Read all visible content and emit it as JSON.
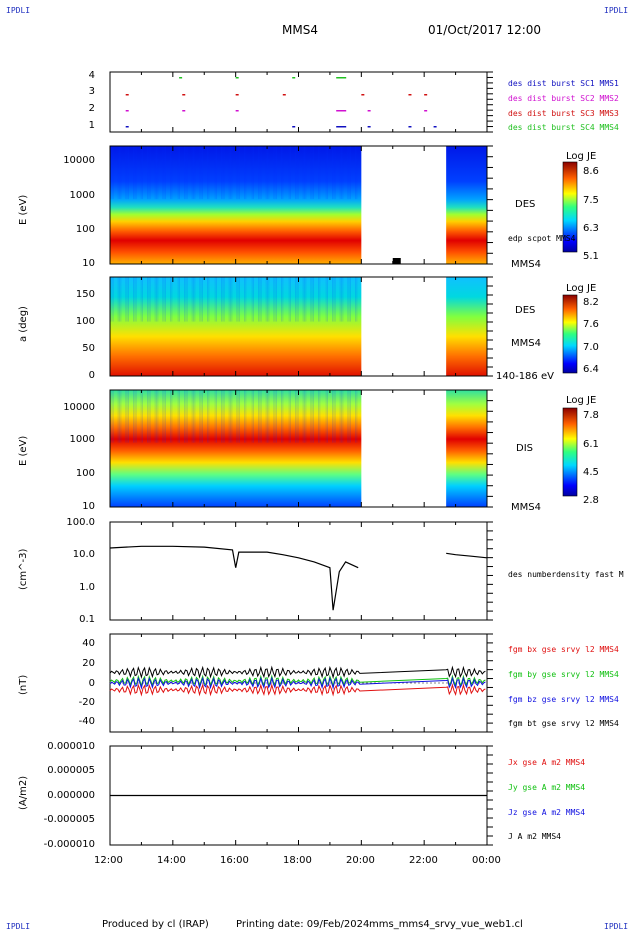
{
  "header": {
    "corner_label": "IPDLI",
    "spacecraft": "MMS4",
    "datetime": "01/Oct/2017 12:00"
  },
  "footer": {
    "produced_by": "Produced by cl (IRAP)",
    "printing_date": "Printing date: 09/Feb/2024",
    "script": "mms_mms4_srvy_vue_web1.cl"
  },
  "time_axis": [
    "12:00",
    "14:00",
    "16:00",
    "18:00",
    "20:00",
    "22:00",
    "00:00"
  ],
  "panels": {
    "p1": {
      "yticks": [
        "4",
        "3",
        "2",
        "1"
      ],
      "legend": [
        {
          "text": "des dist burst SC1 MMS1",
          "color": "#1010c0"
        },
        {
          "text": "des dist burst SC2 MMS2",
          "color": "#d010d0"
        },
        {
          "text": "des dist burst SC3 MMS3",
          "color": "#d01010"
        },
        {
          "text": "des dist burst SC4 MMS4",
          "color": "#20c020"
        }
      ]
    },
    "p2": {
      "ylabel": "E (eV)",
      "yticks": [
        "10000",
        "1000",
        "100",
        "10"
      ],
      "right_labels": [
        "DES",
        "edp scpot MMS4",
        "MMS4"
      ],
      "cb_title": "Log JE",
      "cb_ticks": [
        "8.6",
        "7.5",
        "6.3",
        "5.1"
      ]
    },
    "p3": {
      "ylabel": "a (deg)",
      "yticks": [
        "150",
        "100",
        "50",
        "0"
      ],
      "right_labels": [
        "DES",
        "MMS4",
        "140-186 eV"
      ],
      "cb_title": "Log JE",
      "cb_ticks": [
        "8.2",
        "7.6",
        "7.0",
        "6.4"
      ]
    },
    "p4": {
      "ylabel": "E (eV)",
      "yticks": [
        "10000",
        "1000",
        "100",
        "10"
      ],
      "right_labels": [
        "DIS",
        "MMS4"
      ],
      "cb_title": "Log JE",
      "cb_ticks": [
        "7.8",
        "6.1",
        "4.5",
        "2.8"
      ]
    },
    "p5": {
      "ylabel": "(cm^-3)",
      "yticks": [
        "100.0",
        "10.0",
        "1.0",
        "0.1"
      ],
      "legend": [
        {
          "text": "des numberdensity fast M",
          "color": "#000000"
        }
      ]
    },
    "p6": {
      "ylabel": "(nT)",
      "yticks": [
        "40",
        "20",
        "0",
        "-20",
        "-40"
      ],
      "legend": [
        {
          "text": "fgm bx gse srvy l2 MMS4",
          "color": "#e01010"
        },
        {
          "text": "fgm by gse srvy l2 MMS4",
          "color": "#10c010"
        },
        {
          "text": "fgm bz gse srvy l2 MMS4",
          "color": "#1010e0"
        },
        {
          "text": "fgm bt gse srvy l2 MMS4",
          "color": "#000000"
        }
      ]
    },
    "p7": {
      "ylabel": "(A/m2)",
      "yticks": [
        "0.000010",
        "0.000005",
        "0.000000",
        "-0.000005",
        "-0.000010"
      ],
      "legend": [
        {
          "text": "Jx gse A m2 MMS4",
          "color": "#e01010"
        },
        {
          "text": "Jy gse A m2 MMS4",
          "color": "#10c010"
        },
        {
          "text": "Jz gse A m2 MMS4",
          "color": "#1010e0"
        },
        {
          "text": "J A m2 MMS4",
          "color": "#000000"
        }
      ]
    }
  },
  "chart_data": {
    "type": "line",
    "x_range_hours": [
      12,
      24
    ],
    "data_gap_hours": [
      20.0,
      22.7
    ],
    "density": {
      "ylim": [
        0.1,
        100
      ],
      "scale": "log",
      "x": [
        12.0,
        13.0,
        14.0,
        15.0,
        15.9,
        16.0,
        16.1,
        17.0,
        17.5,
        18.0,
        18.5,
        19.0,
        19.1,
        19.3,
        19.5,
        19.9,
        22.7,
        23.0,
        23.5,
        24.0
      ],
      "y": [
        16,
        18,
        18,
        17,
        14,
        4,
        12,
        12,
        10,
        8,
        6,
        4,
        0.2,
        3,
        6,
        4,
        11,
        10,
        9,
        8
      ]
    },
    "magnetic_field_nT": {
      "ylim": [
        -50,
        50
      ],
      "bx_mean": -7,
      "by_mean": 2,
      "bz_mean": 0,
      "bt_mean": 11
    },
    "current_density_A_m2": {
      "ylim": [
        -1e-05,
        1e-05
      ],
      "value": 0.0
    }
  }
}
